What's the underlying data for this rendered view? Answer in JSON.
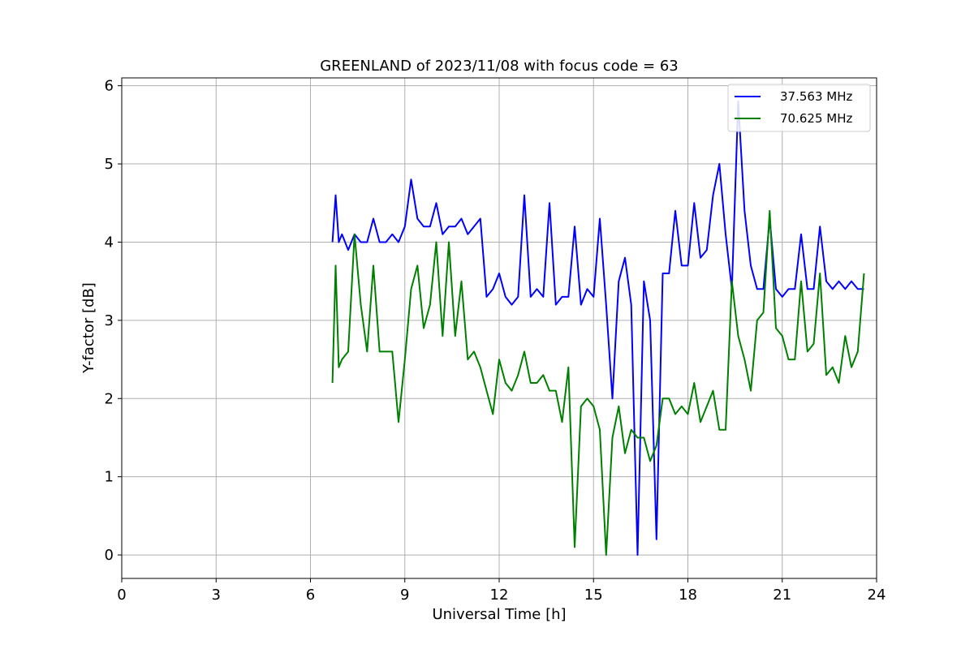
{
  "chart_data": {
    "type": "line",
    "title": "GREENLAND of 2023/11/08 with focus code = 63",
    "xlabel": "Universal Time [h]",
    "ylabel": "Y-factor [dB]",
    "xlim": [
      0,
      24
    ],
    "ylim": [
      -0.3,
      6.1
    ],
    "xticks": [
      0,
      3,
      6,
      9,
      12,
      15,
      18,
      21,
      24
    ],
    "yticks": [
      0,
      1,
      2,
      3,
      4,
      5,
      6
    ],
    "grid": true,
    "legend_position": "top-right",
    "series": [
      {
        "name": "37.563 MHz",
        "color": "#0000ff",
        "x": [
          6.7,
          6.8,
          6.9,
          7.0,
          7.2,
          7.4,
          7.6,
          7.8,
          8.0,
          8.2,
          8.4,
          8.6,
          8.8,
          9.0,
          9.2,
          9.4,
          9.6,
          9.8,
          10.0,
          10.2,
          10.4,
          10.6,
          10.8,
          11.0,
          11.2,
          11.4,
          11.6,
          11.8,
          12.0,
          12.2,
          12.4,
          12.6,
          12.8,
          13.0,
          13.2,
          13.4,
          13.6,
          13.8,
          14.0,
          14.2,
          14.4,
          14.6,
          14.8,
          15.0,
          15.2,
          15.4,
          15.6,
          15.8,
          16.0,
          16.2,
          16.4,
          16.6,
          16.8,
          17.0,
          17.2,
          17.4,
          17.6,
          17.8,
          18.0,
          18.2,
          18.4,
          18.6,
          18.8,
          19.0,
          19.2,
          19.4,
          19.6,
          19.8,
          20.0,
          20.2,
          20.4,
          20.6,
          20.8,
          21.0,
          21.2,
          21.4,
          21.6,
          21.8,
          22.0,
          22.2,
          22.4,
          22.6,
          22.8,
          23.0,
          23.2,
          23.4,
          23.6
        ],
        "y": [
          4.0,
          4.6,
          4.0,
          4.1,
          3.9,
          4.1,
          4.0,
          4.0,
          4.3,
          4.0,
          4.0,
          4.1,
          4.0,
          4.2,
          4.8,
          4.3,
          4.2,
          4.2,
          4.5,
          4.1,
          4.2,
          4.2,
          4.3,
          4.1,
          4.2,
          4.3,
          3.3,
          3.4,
          3.6,
          3.3,
          3.2,
          3.3,
          4.6,
          3.3,
          3.4,
          3.3,
          4.5,
          3.2,
          3.3,
          3.3,
          4.2,
          3.2,
          3.4,
          3.3,
          4.3,
          3.2,
          2.0,
          3.5,
          3.8,
          3.2,
          0.0,
          3.5,
          3.0,
          0.2,
          3.6,
          3.6,
          4.4,
          3.7,
          3.7,
          4.5,
          3.8,
          3.9,
          4.6,
          5.0,
          4.1,
          3.4,
          5.8,
          4.4,
          3.7,
          3.4,
          3.4,
          4.3,
          3.4,
          3.3,
          3.4,
          3.4,
          4.1,
          3.4,
          3.4,
          4.2,
          3.5,
          3.4,
          3.5,
          3.4,
          3.5,
          3.4,
          3.4
        ]
      },
      {
        "name": "70.625 MHz",
        "color": "#008000",
        "x": [
          6.7,
          6.8,
          6.9,
          7.0,
          7.2,
          7.4,
          7.6,
          7.8,
          8.0,
          8.2,
          8.4,
          8.6,
          8.8,
          9.0,
          9.2,
          9.4,
          9.6,
          9.8,
          10.0,
          10.2,
          10.4,
          10.6,
          10.8,
          11.0,
          11.2,
          11.4,
          11.6,
          11.8,
          12.0,
          12.2,
          12.4,
          12.6,
          12.8,
          13.0,
          13.2,
          13.4,
          13.6,
          13.8,
          14.0,
          14.2,
          14.4,
          14.6,
          14.8,
          15.0,
          15.2,
          15.4,
          15.6,
          15.8,
          16.0,
          16.2,
          16.4,
          16.6,
          16.8,
          17.0,
          17.2,
          17.4,
          17.6,
          17.8,
          18.0,
          18.2,
          18.4,
          18.6,
          18.8,
          19.0,
          19.2,
          19.4,
          19.6,
          19.8,
          20.0,
          20.2,
          20.4,
          20.6,
          20.8,
          21.0,
          21.2,
          21.4,
          21.6,
          21.8,
          22.0,
          22.2,
          22.4,
          22.6,
          22.8,
          23.0,
          23.2,
          23.4,
          23.6
        ],
        "y": [
          2.2,
          3.7,
          2.4,
          2.5,
          2.6,
          4.1,
          3.2,
          2.6,
          3.7,
          2.6,
          2.6,
          2.6,
          1.7,
          2.5,
          3.4,
          3.7,
          2.9,
          3.2,
          4.0,
          2.8,
          4.0,
          2.8,
          3.5,
          2.5,
          2.6,
          2.4,
          2.1,
          1.8,
          2.5,
          2.2,
          2.1,
          2.3,
          2.6,
          2.2,
          2.2,
          2.3,
          2.1,
          2.1,
          1.7,
          2.4,
          0.1,
          1.9,
          2.0,
          1.9,
          1.6,
          0.0,
          1.5,
          1.9,
          1.3,
          1.6,
          1.5,
          1.5,
          1.2,
          1.4,
          2.0,
          2.0,
          1.8,
          1.9,
          1.8,
          2.2,
          1.7,
          1.9,
          2.1,
          1.6,
          1.6,
          3.5,
          2.8,
          2.5,
          2.1,
          3.0,
          3.1,
          4.4,
          2.9,
          2.8,
          2.5,
          2.5,
          3.5,
          2.6,
          2.7,
          3.6,
          2.3,
          2.4,
          2.2,
          2.8,
          2.4,
          2.6,
          3.6
        ]
      }
    ]
  }
}
